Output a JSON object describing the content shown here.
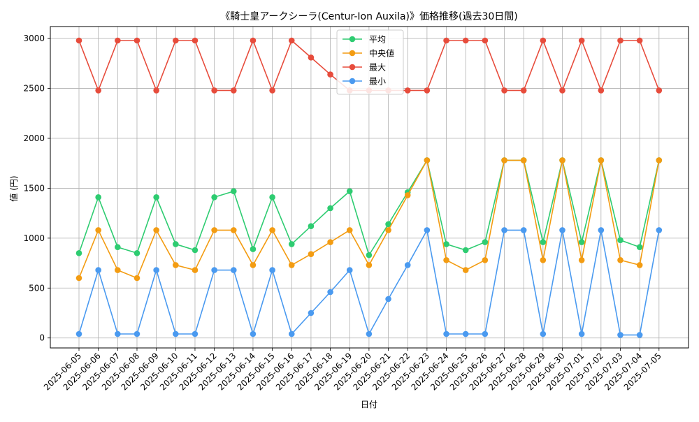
{
  "chart_data": {
    "type": "line",
    "title": "《騎士皇アークシーラ(Centur-Ion Auxila)》価格推移(過去30日間)",
    "xlabel": "日付",
    "ylabel": "値 (円)",
    "ylim": [
      -100,
      3120
    ],
    "yticks": [
      0,
      500,
      1000,
      1500,
      2000,
      2500,
      3000
    ],
    "grid": true,
    "legend_position": "top-center",
    "categories": [
      "2025-06-05",
      "2025-06-06",
      "2025-06-07",
      "2025-06-08",
      "2025-06-09",
      "2025-06-10",
      "2025-06-11",
      "2025-06-12",
      "2025-06-13",
      "2025-06-14",
      "2025-06-15",
      "2025-06-16",
      "2025-06-17",
      "2025-06-18",
      "2025-06-19",
      "2025-06-20",
      "2025-06-21",
      "2025-06-22",
      "2025-06-23",
      "2025-06-24",
      "2025-06-25",
      "2025-06-26",
      "2025-06-27",
      "2025-06-28",
      "2025-06-29",
      "2025-06-30",
      "2025-07-01",
      "2025-07-02",
      "2025-07-03",
      "2025-07-04",
      "2025-07-05"
    ],
    "series": [
      {
        "name": "平均",
        "color": "#2ecc71",
        "values": [
          850,
          1410,
          910,
          850,
          1410,
          940,
          880,
          1410,
          1470,
          890,
          1410,
          940,
          1120,
          1300,
          1470,
          830,
          1140,
          1460,
          1780,
          940,
          880,
          960,
          1780,
          1780,
          960,
          1780,
          960,
          1780,
          980,
          910,
          1780
        ]
      },
      {
        "name": "中央値",
        "color": "#f39c12",
        "values": [
          600,
          1080,
          680,
          600,
          1080,
          730,
          680,
          1080,
          1080,
          730,
          1080,
          730,
          840,
          960,
          1080,
          730,
          1080,
          1430,
          1780,
          780,
          680,
          780,
          1780,
          1780,
          780,
          1780,
          780,
          1780,
          780,
          730,
          1780
        ]
      },
      {
        "name": "最大",
        "color": "#e74c3c",
        "values": [
          2980,
          2480,
          2980,
          2980,
          2480,
          2980,
          2980,
          2480,
          2480,
          2980,
          2480,
          2980,
          2810,
          2640,
          2480,
          2480,
          2480,
          2480,
          2480,
          2980,
          2980,
          2980,
          2480,
          2480,
          2980,
          2480,
          2980,
          2480,
          2980,
          2980,
          2480
        ]
      },
      {
        "name": "最小",
        "color": "#4a9af0",
        "values": [
          40,
          680,
          40,
          40,
          680,
          40,
          40,
          680,
          680,
          40,
          680,
          40,
          250,
          460,
          680,
          40,
          390,
          730,
          1080,
          40,
          40,
          40,
          1080,
          1080,
          40,
          1080,
          40,
          1080,
          30,
          30,
          1080
        ]
      }
    ]
  }
}
